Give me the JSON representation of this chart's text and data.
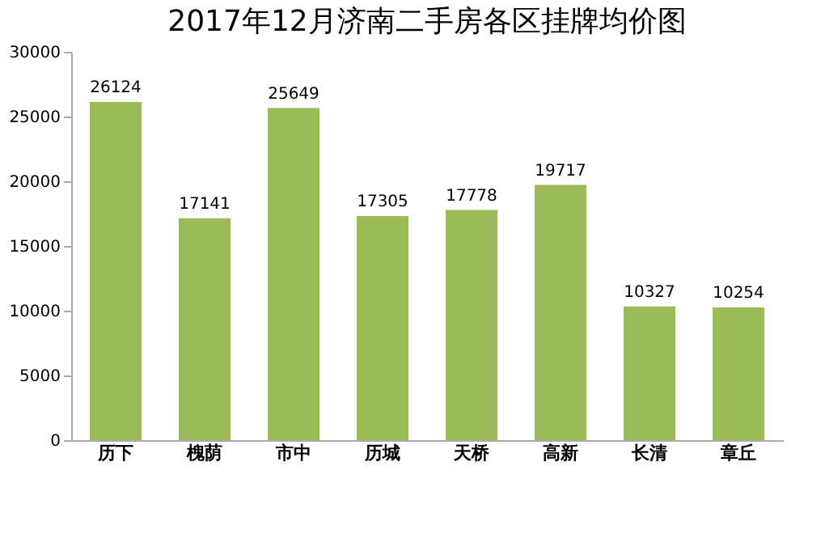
{
  "chart_data": {
    "type": "bar",
    "title": "2017年12月济南二手房各区挂牌均价图",
    "categories": [
      "历下",
      "槐荫",
      "市中",
      "历城",
      "天桥",
      "高新",
      "长清",
      "章丘"
    ],
    "values": [
      26124,
      17141,
      25649,
      17305,
      17778,
      19717,
      10327,
      10254
    ],
    "color": "#9bbb59",
    "ylim": [
      0,
      30000
    ],
    "yticks": [
      0,
      5000,
      10000,
      15000,
      20000,
      25000,
      30000
    ],
    "grid": false,
    "data_labels": true
  }
}
